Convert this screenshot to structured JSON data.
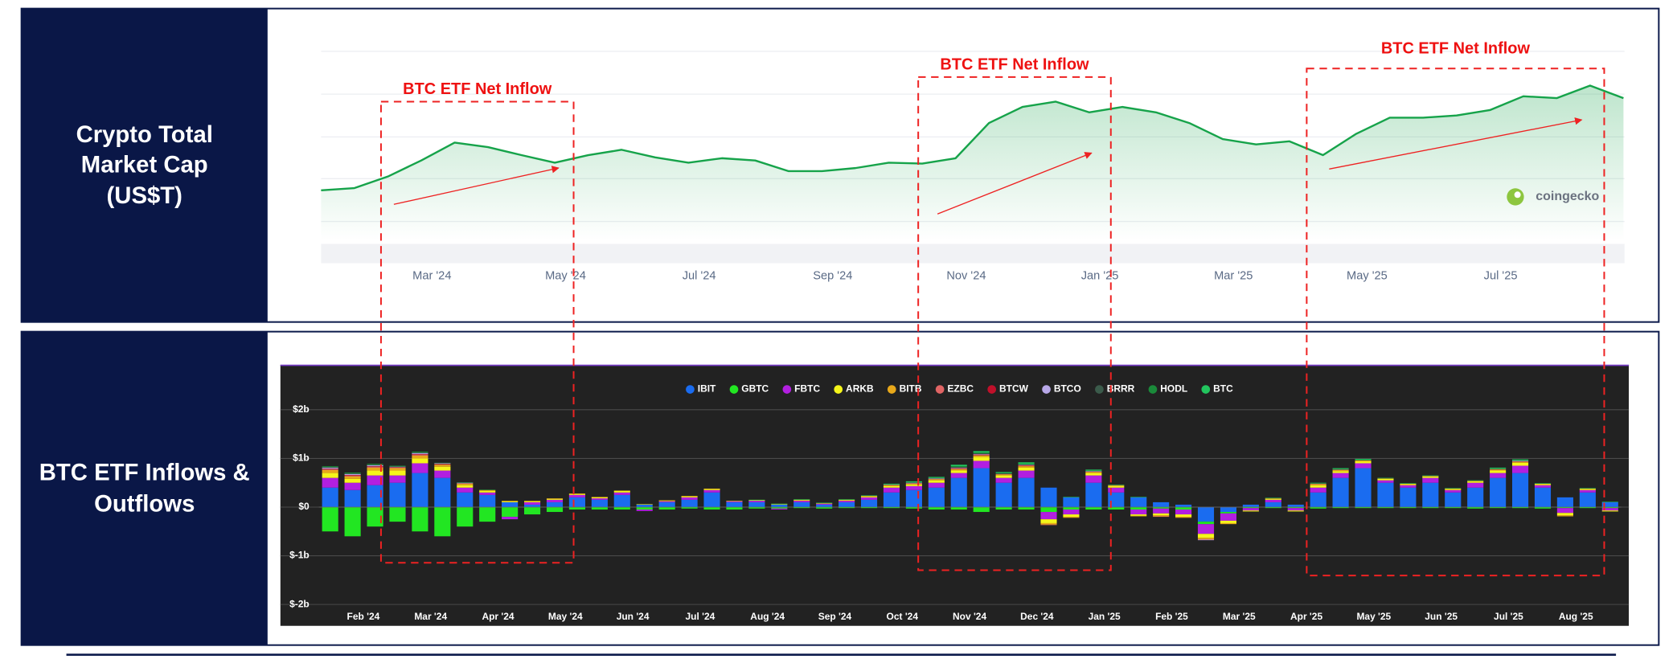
{
  "chart_data": [
    {
      "type": "area",
      "title": "Crypto Total Market Cap (US$T)",
      "color": "#16a34a",
      "categories": [
        null,
        null,
        null,
        "Mar '24",
        null,
        null,
        null,
        "May '24",
        null,
        null,
        null,
        "Jul '24",
        null,
        null,
        null,
        "Sep '24",
        null,
        null,
        null,
        "Nov '24",
        null,
        null,
        null,
        "Jan '25",
        null,
        null,
        null,
        "Mar '25",
        null,
        null,
        null,
        "May '25",
        null,
        null,
        null,
        "Jul '25",
        null,
        null,
        null,
        null
      ],
      "values": [
        1.63,
        1.68,
        1.94,
        2.3,
        2.7,
        2.6,
        2.42,
        2.25,
        2.42,
        2.54,
        2.37,
        2.25,
        2.35,
        2.3,
        2.06,
        2.06,
        2.13,
        2.25,
        2.23,
        2.35,
        3.14,
        3.5,
        3.62,
        3.38,
        3.5,
        3.38,
        3.14,
        2.78,
        2.66,
        2.73,
        2.42,
        2.9,
        3.26,
        3.26,
        3.31,
        3.43,
        3.74,
        3.7,
        3.98,
        3.7
      ],
      "ylim": [
        0.5,
        5.0
      ],
      "grid": true,
      "annotations": [
        "BTC ETF Net Inflow",
        "BTC ETF Net Inflow",
        "BTC ETF Net Inflow"
      ],
      "watermark": "coingecko"
    },
    {
      "type": "bar",
      "stacked": true,
      "title": "BTC ETF Inflows & Outflows",
      "grid": true,
      "legend": "top",
      "categories": [
        null,
        "Feb '24",
        null,
        null,
        "Mar '24",
        null,
        null,
        "Apr '24",
        null,
        null,
        "May '24",
        null,
        null,
        "Jun '24",
        null,
        null,
        "Jul '24",
        null,
        null,
        "Aug '24",
        null,
        null,
        "Sep '24",
        null,
        null,
        "Oct '24",
        null,
        null,
        "Nov '24",
        null,
        null,
        "Dec '24",
        null,
        null,
        "Jan '25",
        null,
        null,
        "Feb '25",
        null,
        null,
        "Mar '25",
        null,
        null,
        "Apr '25",
        null,
        null,
        "May '25",
        null,
        null,
        "Jun '25",
        null,
        null,
        "Jul '25",
        null,
        null,
        "Aug '25",
        null,
        null
      ],
      "ylim": [
        -2,
        2
      ],
      "yticks": [
        {
          "value": 2,
          "label": "$2b"
        },
        {
          "value": 1,
          "label": "$1b"
        },
        {
          "value": 0,
          "label": "$0"
        },
        {
          "value": -1,
          "label": "$-1b"
        },
        {
          "value": -2,
          "label": "$-2b"
        }
      ],
      "series": [
        {
          "name": "IBIT",
          "color": "#1a6cf0",
          "values": [
            0.4,
            0.35,
            0.45,
            0.5,
            0.7,
            0.6,
            0.3,
            0.25,
            0.1,
            0.05,
            0.1,
            0.2,
            0.15,
            0.25,
            0.05,
            0.1,
            0.15,
            0.3,
            0.1,
            0.1,
            0.05,
            0.1,
            0.05,
            0.1,
            0.15,
            0.3,
            0.35,
            0.4,
            0.6,
            0.8,
            0.5,
            0.6,
            0.4,
            0.2,
            0.5,
            0.3,
            0.2,
            0.1,
            0.05,
            -0.3,
            -0.1,
            0.05,
            0.1,
            0.05,
            0.3,
            0.6,
            0.8,
            0.5,
            0.4,
            0.5,
            0.3,
            0.4,
            0.6,
            0.7,
            0.4,
            0.2,
            0.3,
            0.1
          ]
        },
        {
          "name": "GBTC",
          "color": "#22e622",
          "values": [
            -0.5,
            -0.6,
            -0.4,
            -0.3,
            -0.5,
            -0.6,
            -0.4,
            -0.3,
            -0.2,
            -0.15,
            -0.1,
            -0.05,
            -0.05,
            -0.05,
            -0.05,
            -0.05,
            -0.03,
            -0.05,
            -0.05,
            -0.03,
            -0.03,
            -0.02,
            -0.03,
            -0.02,
            -0.02,
            -0.02,
            -0.03,
            -0.05,
            -0.05,
            -0.1,
            -0.05,
            -0.05,
            -0.1,
            -0.05,
            -0.05,
            -0.05,
            -0.05,
            -0.03,
            -0.05,
            -0.05,
            -0.03,
            -0.02,
            -0.02,
            -0.02,
            -0.03,
            -0.02,
            -0.02,
            -0.02,
            -0.02,
            -0.02,
            -0.02,
            -0.03,
            -0.02,
            -0.02,
            -0.03,
            -0.02,
            -0.02,
            -0.02
          ]
        },
        {
          "name": "FBTC",
          "color": "#b21fe0",
          "values": [
            0.2,
            0.15,
            0.2,
            0.15,
            0.2,
            0.15,
            0.1,
            0.05,
            -0.05,
            0.05,
            0.05,
            0.05,
            0.03,
            0.05,
            -0.03,
            0.02,
            0.05,
            0.05,
            0.02,
            0.03,
            -0.02,
            0.03,
            0.02,
            0.03,
            0.05,
            0.1,
            0.08,
            0.1,
            0.1,
            0.15,
            0.1,
            0.15,
            -0.15,
            -0.1,
            0.15,
            0.1,
            -0.1,
            -0.1,
            -0.1,
            -0.2,
            -0.15,
            -0.05,
            0.05,
            -0.05,
            0.1,
            0.1,
            0.1,
            0.05,
            0.05,
            0.1,
            0.05,
            0.1,
            0.1,
            0.15,
            0.05,
            -0.1,
            0.05,
            -0.05
          ]
        },
        {
          "name": "ARKB",
          "color": "#f5f51a",
          "values": [
            0.1,
            0.08,
            0.1,
            0.1,
            0.1,
            0.08,
            0.05,
            0.03,
            0.02,
            0.02,
            0.02,
            0.02,
            0.02,
            0.03,
            0.01,
            0.01,
            0.02,
            0.02,
            0.01,
            0.01,
            0.01,
            0.01,
            0.01,
            0.01,
            0.02,
            0.03,
            0.03,
            0.05,
            0.05,
            0.08,
            0.05,
            0.06,
            -0.08,
            -0.05,
            0.05,
            0.03,
            -0.03,
            -0.04,
            -0.05,
            -0.08,
            -0.05,
            -0.02,
            0.02,
            -0.02,
            0.05,
            0.04,
            0.04,
            0.03,
            0.02,
            0.03,
            0.02,
            0.03,
            0.05,
            0.06,
            0.02,
            -0.05,
            0.02,
            -0.02
          ]
        },
        {
          "name": "BITB",
          "color": "#e8a81a",
          "values": [
            0.06,
            0.05,
            0.06,
            0.05,
            0.06,
            0.04,
            0.03,
            0.02,
            0.01,
            0.01,
            0.01,
            0.01,
            0.01,
            0.01,
            0,
            0.01,
            0.01,
            0.01,
            0,
            0,
            0,
            0.01,
            0,
            0.01,
            0.01,
            0.02,
            0.02,
            0.02,
            0.03,
            0.03,
            0.02,
            0.03,
            -0.03,
            -0.02,
            0.02,
            0.02,
            -0.01,
            -0.02,
            -0.02,
            -0.03,
            -0.02,
            0,
            0.01,
            0,
            0.02,
            0.02,
            0.02,
            0.01,
            0.01,
            0.01,
            0.01,
            0.01,
            0.02,
            0.02,
            0.01,
            -0.02,
            0.01,
            0
          ]
        },
        {
          "name": "EZBC",
          "color": "#e06464",
          "values": [
            0.02,
            0.02,
            0.02,
            0.01,
            0.02,
            0.01,
            0.01,
            0,
            0,
            0,
            0,
            0,
            0,
            0,
            0,
            0,
            0,
            0,
            0,
            0,
            0,
            0,
            0,
            0,
            0,
            0.01,
            0.01,
            0.01,
            0.01,
            0.01,
            0.01,
            0.01,
            -0.01,
            0,
            0.01,
            0,
            0,
            -0.01,
            0,
            -0.01,
            0,
            0,
            0,
            0,
            0.01,
            0.01,
            0,
            0,
            0,
            0,
            0,
            0,
            0.01,
            0.01,
            0,
            0,
            0,
            0
          ]
        },
        {
          "name": "BTCW",
          "color": "#c0102a",
          "values": [
            0.01,
            0.01,
            0.01,
            0.01,
            0.01,
            0.01,
            0,
            0,
            0,
            0,
            0,
            0,
            0,
            0,
            0,
            0,
            0,
            0,
            0,
            0,
            0,
            0,
            0,
            0,
            0,
            0,
            0,
            0,
            0.01,
            0.01,
            0,
            0.01,
            0,
            0,
            0,
            0,
            0,
            0,
            0,
            0,
            0,
            0,
            0,
            0,
            0,
            0,
            0,
            0,
            0,
            0,
            0,
            0,
            0,
            0,
            0,
            0,
            0,
            0
          ]
        },
        {
          "name": "BTCO",
          "color": "#b8a8e8",
          "values": [
            0.02,
            0.02,
            0.02,
            0.01,
            0.02,
            0.01,
            0.01,
            0,
            0,
            0,
            0,
            0,
            0,
            0,
            0,
            0,
            0,
            0,
            0,
            0,
            0,
            0,
            0,
            0,
            0,
            0,
            0.01,
            0.01,
            0.01,
            0.01,
            0,
            0.01,
            0,
            0,
            0.01,
            0,
            0,
            0,
            0,
            -0.01,
            0,
            0,
            0,
            0,
            0,
            0,
            0,
            0,
            0,
            0,
            0,
            0,
            0,
            0.01,
            0,
            0,
            0,
            0
          ]
        },
        {
          "name": "BRRR",
          "color": "#3b5b4b",
          "values": [
            0.01,
            0.01,
            0.01,
            0,
            0.01,
            0,
            0,
            0,
            0,
            0,
            0,
            0,
            0,
            0,
            0,
            0,
            0,
            0,
            0,
            0,
            0,
            0,
            0,
            0,
            0,
            0,
            0,
            0,
            0.01,
            0.01,
            0.01,
            0,
            0,
            0,
            0,
            0,
            0,
            0,
            0,
            0,
            0,
            0,
            0,
            0,
            0,
            0,
            0,
            0,
            0,
            0,
            0,
            0,
            0,
            0,
            0,
            0,
            0,
            0
          ]
        },
        {
          "name": "HODL",
          "color": "#1a8a3a",
          "values": [
            0.02,
            0.02,
            0.02,
            0.02,
            0.02,
            0.01,
            0.01,
            0.01,
            0,
            0,
            0,
            0,
            0,
            0,
            0,
            0,
            0,
            0,
            0,
            0,
            0,
            0,
            0,
            0,
            0,
            0,
            0.01,
            0.01,
            0.02,
            0.02,
            0.01,
            0.02,
            0,
            0,
            0.01,
            0,
            0,
            0,
            0,
            0,
            0,
            0,
            0,
            0,
            0.01,
            0.01,
            0.01,
            0,
            0,
            0,
            0,
            0,
            0.01,
            0.01,
            0,
            0,
            0,
            0
          ]
        },
        {
          "name": "BTC",
          "color": "#22c55e",
          "values": [
            0,
            0,
            0,
            0,
            0,
            0,
            0,
            0,
            0,
            0,
            0,
            0,
            0,
            0,
            0,
            0,
            0,
            0,
            0,
            0.01,
            0.01,
            0.01,
            0.01,
            0.01,
            0.01,
            0.02,
            0.02,
            0.02,
            0.03,
            0.03,
            0.02,
            0.03,
            0,
            0.01,
            0.02,
            0.01,
            0.01,
            0,
            0,
            0,
            0,
            0,
            0.01,
            0,
            0.01,
            0.02,
            0.02,
            0.01,
            0.01,
            0.01,
            0.01,
            0.01,
            0.02,
            0.02,
            0.01,
            0,
            0.01,
            0.01
          ]
        }
      ]
    }
  ]
}
